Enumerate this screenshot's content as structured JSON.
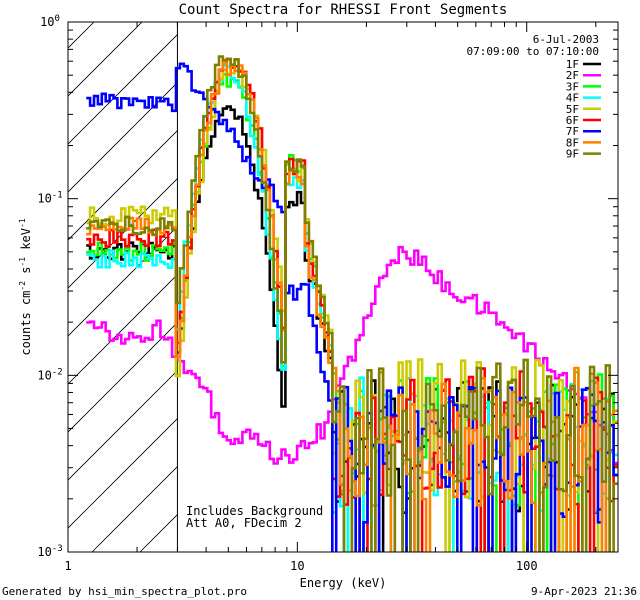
{
  "chart_data": {
    "type": "line",
    "title": "Count Spectra for RHESSI Front Segments",
    "xlabel": "Energy (keV)",
    "ylabel": {
      "base": "counts cm",
      "e1": "-2",
      "mid1": " s",
      "e2": "-1",
      "mid2": " keV",
      "e3": "-1"
    },
    "xscale": "log",
    "yscale": "log",
    "xlim": [
      1,
      250
    ],
    "ylim": [
      0.001,
      1
    ],
    "x_tick_labels": [
      "1",
      "10",
      "100"
    ],
    "y_tick_labels": [
      {
        "base": "10",
        "exp": "0"
      },
      {
        "base": "10",
        "exp": "-1"
      },
      {
        "base": "10",
        "exp": "-2"
      },
      {
        "base": "10",
        "exp": "-3"
      }
    ],
    "date": "6-Jul-2003",
    "time_range": "07:09:00 to 07:10:00",
    "annotations": [
      "Includes Background",
      "Att A0, FDecim 2"
    ],
    "attenuator_cutoff_keV": 3,
    "legend_position": "top-right",
    "series": [
      {
        "name": "1F",
        "color": "#000000",
        "peak": 0.33,
        "peakE": 5.0,
        "low": 0.05,
        "c10": 0.048,
        "tail": 0.004,
        "spike": 0.1
      },
      {
        "name": "2F",
        "color": "#ff00ff"
      },
      {
        "name": "3F",
        "color": "#00ff00",
        "peak": 0.47,
        "peakE": 5.1,
        "low": 0.05,
        "c10": 0.06,
        "tail": 0.0045,
        "spike": 0.16
      },
      {
        "name": "4F",
        "color": "#00ffff",
        "peak": 0.52,
        "peakE": 5.0,
        "low": 0.045,
        "c10": 0.055,
        "tail": 0.004,
        "spike": 0.12
      },
      {
        "name": "5F",
        "color": "#cccc00",
        "peak": 0.55,
        "peakE": 5.3,
        "low": 0.08,
        "c10": 0.07,
        "tail": 0.005,
        "spike": 0.14
      },
      {
        "name": "6F",
        "color": "#ff0000",
        "peak": 0.6,
        "peakE": 5.2,
        "low": 0.06,
        "c10": 0.06,
        "tail": 0.0045,
        "spike": 0.15
      },
      {
        "name": "7F",
        "color": "#0000ff",
        "peak": 0.6,
        "peakE": 2.5,
        "low": 0.35,
        "c10": 0.03,
        "tail": 0.0035,
        "spike": 0.03
      },
      {
        "name": "8F",
        "color": "#ff8000",
        "peak": 0.57,
        "peakE": 5.2,
        "low": 0.07,
        "c10": 0.05,
        "tail": 0.0045,
        "spike": 0.13
      },
      {
        "name": "9F",
        "color": "#808000",
        "peak": 0.62,
        "peakE": 5.0,
        "low": 0.07,
        "c10": 0.07,
        "tail": 0.005,
        "spike": 0.15
      }
    ],
    "series_2F_profile": {
      "E": [
        1.2,
        1.5,
        2.0,
        2.5,
        3.0,
        4.0,
        5.0,
        6.0,
        8.0,
        10.0,
        13.0,
        16.0,
        20.0,
        25.0,
        28.0,
        33.0,
        45.0,
        60.0,
        80.0,
        110.0,
        150.0,
        200.0,
        250.0
      ],
      "counts": [
        0.022,
        0.018,
        0.015,
        0.02,
        0.012,
        0.008,
        0.004,
        0.0045,
        0.0035,
        0.0035,
        0.005,
        0.01,
        0.02,
        0.043,
        0.05,
        0.046,
        0.032,
        0.025,
        0.02,
        0.013,
        0.009,
        0.006,
        0.0032
      ]
    }
  },
  "footer": {
    "generated_by": "Generated by hsi_min_spectra_plot.pro",
    "timestamp": "9-Apr-2023 21:36"
  }
}
